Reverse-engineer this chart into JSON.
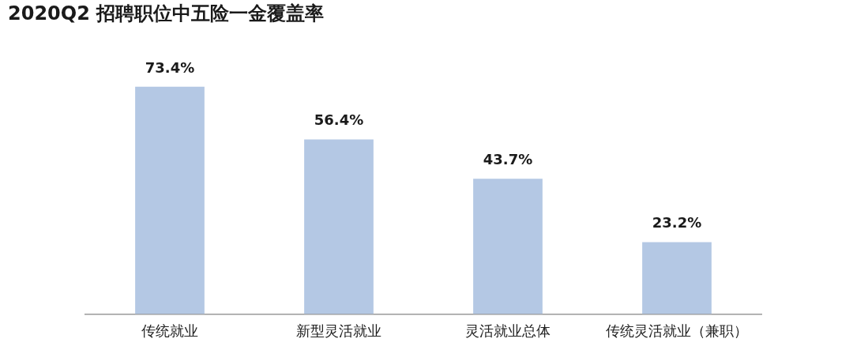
{
  "chart_data": {
    "type": "bar",
    "title": "2020Q2 招聘职位中五险一金覆盖率",
    "categories": [
      "传统就业",
      "新型灵活就业",
      "灵活就业总体",
      "传统灵活就业（兼职）"
    ],
    "values": [
      73.4,
      56.4,
      43.7,
      23.2
    ],
    "color": "#b4c8e4",
    "value_labels": [
      "73.4%",
      "56.4%",
      "43.7%",
      "23.2%"
    ],
    "grid": false,
    "legend": false
  }
}
